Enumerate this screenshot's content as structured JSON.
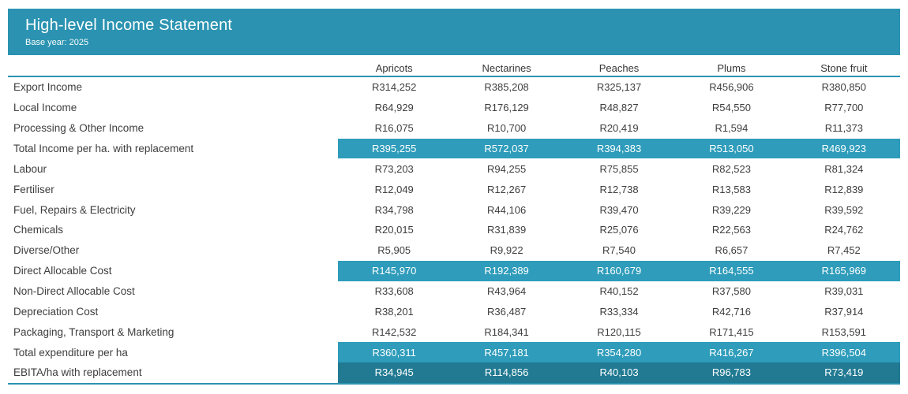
{
  "header": {
    "title": "High-level Income Statement",
    "subtitle": "Base year: 2025"
  },
  "colors": {
    "accent": "#2B93B1",
    "band": "#2E9CBA",
    "band_dark": "#217A92",
    "text": "#3E3E3E",
    "header_text": "#363636"
  },
  "chart_data": {
    "type": "table",
    "title": "High-level Income Statement",
    "subtitle": "Base year: 2025",
    "currency": "R",
    "columns": [
      "Apricots",
      "Nectarines",
      "Peaches",
      "Plums",
      "Stone fruit"
    ],
    "rows": [
      {
        "label": "Export Income",
        "values": [
          "R314,252",
          "R385,208",
          "R325,137",
          "R456,906",
          "R380,850"
        ],
        "highlight": "none"
      },
      {
        "label": "Local Income",
        "values": [
          "R64,929",
          "R176,129",
          "R48,827",
          "R54,550",
          "R77,700"
        ],
        "highlight": "none"
      },
      {
        "label": "Processing & Other Income",
        "values": [
          "R16,075",
          "R10,700",
          "R20,419",
          "R1,594",
          "R11,373"
        ],
        "highlight": "none"
      },
      {
        "label": "Total Income per ha. with replacement",
        "values": [
          "R395,255",
          "R572,037",
          "R394,383",
          "R513,050",
          "R469,923"
        ],
        "highlight": "teal"
      },
      {
        "label": "Labour",
        "values": [
          "R73,203",
          "R94,255",
          "R75,855",
          "R82,523",
          "R81,324"
        ],
        "highlight": "none"
      },
      {
        "label": "Fertiliser",
        "values": [
          "R12,049",
          "R12,267",
          "R12,738",
          "R13,583",
          "R12,839"
        ],
        "highlight": "none"
      },
      {
        "label": "Fuel, Repairs & Electricity",
        "values": [
          "R34,798",
          "R44,106",
          "R39,470",
          "R39,229",
          "R39,592"
        ],
        "highlight": "none"
      },
      {
        "label": "Chemicals",
        "values": [
          "R20,015",
          "R31,839",
          "R25,076",
          "R22,563",
          "R24,762"
        ],
        "highlight": "none"
      },
      {
        "label": "Diverse/Other",
        "values": [
          "R5,905",
          "R9,922",
          "R7,540",
          "R6,657",
          "R7,452"
        ],
        "highlight": "none"
      },
      {
        "label": "Direct Allocable Cost",
        "values": [
          "R145,970",
          "R192,389",
          "R160,679",
          "R164,555",
          "R165,969"
        ],
        "highlight": "teal"
      },
      {
        "label": "Non-Direct Allocable Cost",
        "values": [
          "R33,608",
          "R43,964",
          "R40,152",
          "R37,580",
          "R39,031"
        ],
        "highlight": "none"
      },
      {
        "label": "Depreciation Cost",
        "values": [
          "R38,201",
          "R36,487",
          "R33,334",
          "R42,716",
          "R37,914"
        ],
        "highlight": "none"
      },
      {
        "label": "Packaging, Transport & Marketing",
        "values": [
          "R142,532",
          "R184,341",
          "R120,115",
          "R171,415",
          "R153,591"
        ],
        "highlight": "none"
      },
      {
        "label": "Total expenditure per ha",
        "values": [
          "R360,311",
          "R457,181",
          "R354,280",
          "R416,267",
          "R396,504"
        ],
        "highlight": "teal"
      },
      {
        "label": "EBITA/ha with replacement",
        "values": [
          "R34,945",
          "R114,856",
          "R40,103",
          "R96,783",
          "R73,419"
        ],
        "highlight": "dark-teal"
      }
    ]
  }
}
